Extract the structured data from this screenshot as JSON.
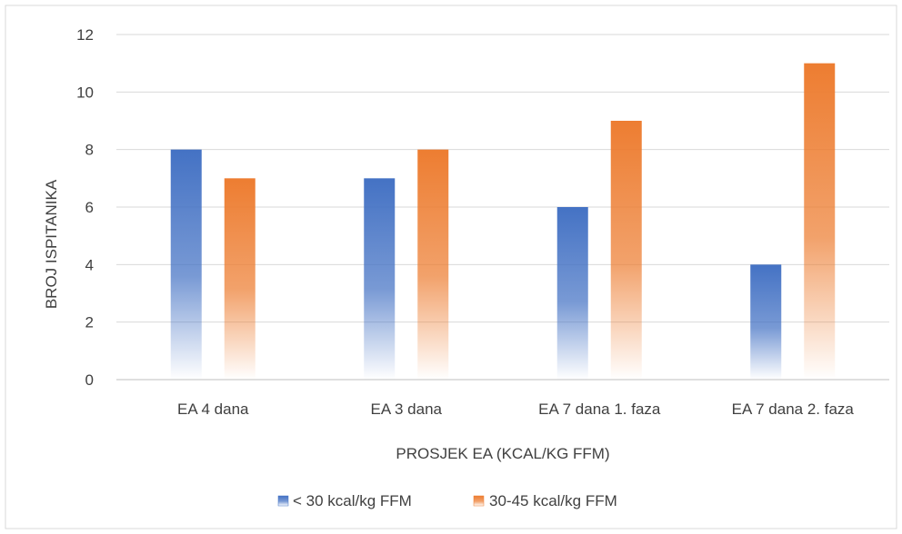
{
  "chart_data": {
    "type": "bar",
    "title": "",
    "xlabel": "PROSJEK EA (KCAL/KG FFM)",
    "ylabel": "BROJ ISPITANIKA",
    "categories": [
      "EA 4 dana",
      "EA 3 dana",
      "EA 7 dana 1. faza",
      "EA 7 dana 2. faza"
    ],
    "series": [
      {
        "name": "< 30 kcal/kg FFM",
        "values": [
          8,
          7,
          6,
          4
        ],
        "color": "#4472c4"
      },
      {
        "name": "30-45 kcal/kg FFM",
        "values": [
          7,
          8,
          9,
          11
        ],
        "color": "#ed7d31"
      }
    ],
    "ylim": [
      0,
      12
    ],
    "yticks": [
      0,
      2,
      4,
      6,
      8,
      10,
      12
    ],
    "grid": true,
    "legend_position": "bottom",
    "bar_fill": "vertical gradient fading to white at the base"
  }
}
